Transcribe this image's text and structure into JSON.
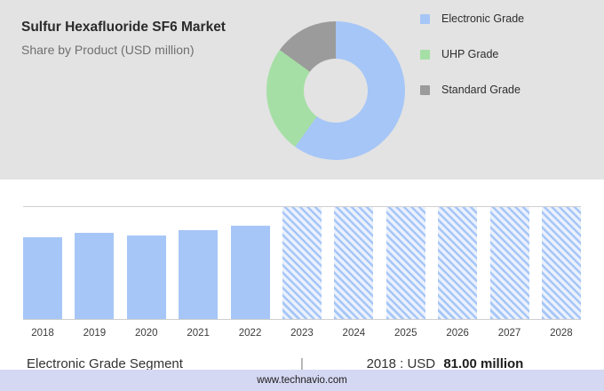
{
  "header": {
    "title": "Sulfur Hexafluoride SF6 Market",
    "subtitle": "Share by Product (USD million)"
  },
  "colors": {
    "header_bg": "#e3e3e3",
    "bar_blue": "#a6c6f7",
    "hatch_bg": "#eaf1fd",
    "footer_bg": "#d5d8f2"
  },
  "chart_data": [
    {
      "type": "pie",
      "donut": true,
      "title": "Share by Product (USD million)",
      "labels": [
        "Electronic Grade",
        "UHP Grade",
        "Standard Grade"
      ],
      "values": [
        60,
        25,
        15
      ],
      "colors": [
        "#a6c6f7",
        "#a5dfa5",
        "#9b9b9b"
      ],
      "legend_position": "right"
    },
    {
      "type": "bar",
      "title": "Electronic Grade Segment",
      "unit": "USD million",
      "color": "#a6c6f7",
      "categories": [
        "2018",
        "2019",
        "2020",
        "2021",
        "2022",
        "2023",
        "2024",
        "2025",
        "2026",
        "2027",
        "2028"
      ],
      "bars": [
        {
          "label": "2018",
          "value": 81.0,
          "height_pct": 73,
          "hatched": false
        },
        {
          "label": "2019",
          "value": 85.0,
          "height_pct": 77,
          "hatched": false
        },
        {
          "label": "2020",
          "value": 83.0,
          "height_pct": 75,
          "hatched": false
        },
        {
          "label": "2021",
          "value": 87.0,
          "height_pct": 79,
          "hatched": false
        },
        {
          "label": "2022",
          "value": 91.0,
          "height_pct": 83,
          "hatched": false
        },
        {
          "label": "2023",
          "value": null,
          "height_pct": 100,
          "hatched": true
        },
        {
          "label": "2024",
          "value": null,
          "height_pct": 100,
          "hatched": true
        },
        {
          "label": "2025",
          "value": null,
          "height_pct": 100,
          "hatched": true
        },
        {
          "label": "2026",
          "value": null,
          "height_pct": 100,
          "hatched": true
        },
        {
          "label": "2027",
          "value": null,
          "height_pct": 100,
          "hatched": true
        },
        {
          "label": "2028",
          "value": null,
          "height_pct": 100,
          "hatched": true
        }
      ],
      "note": "2023-2028 shown as hatched forecast bars; values not labeled on chart"
    }
  ],
  "caption": {
    "segment": "Electronic Grade Segment",
    "separator": "|",
    "prefix": "2018 : USD",
    "value": "81.00 million"
  },
  "footer": {
    "url": "www.technavio.com"
  }
}
